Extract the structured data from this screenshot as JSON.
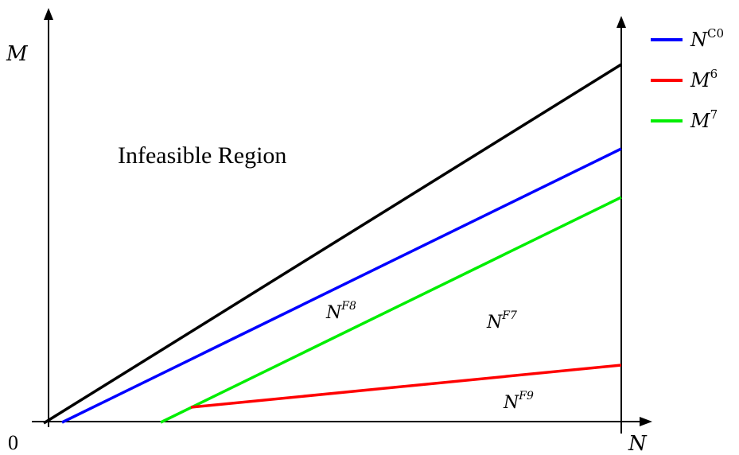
{
  "axes": {
    "y_label": "M",
    "x_label": "N",
    "origin_label": "0"
  },
  "region_label": "Infeasible Region",
  "region_labels": [
    {
      "base": "N",
      "sup": "F8"
    },
    {
      "base": "N",
      "sup": "F7"
    },
    {
      "base": "N",
      "sup": "F9"
    }
  ],
  "legend": [
    {
      "base": "N",
      "sup": "C0",
      "color": "#0000ff"
    },
    {
      "base": "M",
      "sup": "6",
      "color": "#ff0000"
    },
    {
      "base": "M",
      "sup": "7",
      "color": "#00ee00"
    }
  ],
  "colors": {
    "boundary": "#000000",
    "axes": "#000000"
  }
}
